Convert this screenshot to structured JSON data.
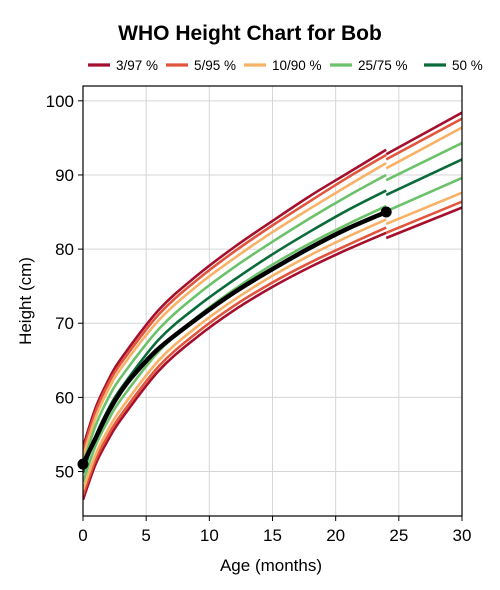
{
  "chart_data": {
    "type": "line",
    "title": "WHO Height Chart for Bob",
    "xlabel": "Age (months)",
    "ylabel": "Height (cm)",
    "xlim": [
      0,
      30
    ],
    "ylim": [
      44,
      102
    ],
    "xticks": [
      0,
      5,
      10,
      15,
      20,
      25,
      30
    ],
    "yticks": [
      50,
      60,
      70,
      80,
      90,
      100
    ],
    "grid": true,
    "legend_position": "top",
    "legend": [
      {
        "label": "3/97 %",
        "color": "#a50f2d"
      },
      {
        "label": "5/95 %",
        "color": "#e2553d"
      },
      {
        "label": "10/90 %",
        "color": "#f8b268"
      },
      {
        "label": "25/75 %",
        "color": "#6cc16b"
      },
      {
        "label": "50 %",
        "color": "#0b6b3a"
      }
    ],
    "reference_curves": {
      "note_break_at_month": 24,
      "series": [
        {
          "group": "3/97 %",
          "color": "#a50f2d",
          "segments": [
            {
              "x": [
                0,
                1,
                2,
                3,
                6,
                9,
                12,
                15,
                18,
                21,
                24
              ],
              "y": [
                46.2,
                51.0,
                54.3,
                57.0,
                63.6,
                68.1,
                71.8,
                74.9,
                77.6,
                80.0,
                82.2
              ]
            },
            {
              "x": [
                24,
                30
              ],
              "y": [
                81.5,
                85.6
              ]
            }
          ]
        },
        {
          "group": "3/97 %",
          "color": "#a50f2d",
          "segments": [
            {
              "x": [
                0,
                1,
                2,
                3,
                6,
                9,
                12,
                15,
                18,
                21,
                24
              ],
              "y": [
                53.3,
                58.6,
                62.3,
                65.2,
                71.8,
                76.4,
                80.3,
                83.8,
                87.2,
                90.3,
                93.4
              ]
            },
            {
              "x": [
                24,
                30
              ],
              "y": [
                92.8,
                98.4
              ]
            }
          ]
        },
        {
          "group": "5/95 %",
          "color": "#e2553d",
          "segments": [
            {
              "x": [
                0,
                1,
                2,
                3,
                6,
                9,
                12,
                15,
                18,
                21,
                24
              ],
              "y": [
                46.8,
                51.6,
                54.9,
                57.6,
                64.2,
                68.7,
                72.4,
                75.5,
                78.2,
                80.6,
                82.9
              ]
            },
            {
              "x": [
                24,
                30
              ],
              "y": [
                82.2,
                86.4
              ]
            }
          ]
        },
        {
          "group": "5/95 %",
          "color": "#e2553d",
          "segments": [
            {
              "x": [
                0,
                1,
                2,
                3,
                6,
                9,
                12,
                15,
                18,
                21,
                24
              ],
              "y": [
                52.8,
                58.1,
                61.8,
                64.6,
                71.2,
                75.8,
                79.7,
                83.2,
                86.5,
                89.7,
                92.7
              ]
            },
            {
              "x": [
                24,
                30
              ],
              "y": [
                92.1,
                97.6
              ]
            }
          ]
        },
        {
          "group": "10/90 %",
          "color": "#f8b268",
          "segments": [
            {
              "x": [
                0,
                1,
                2,
                3,
                6,
                9,
                12,
                15,
                18,
                21,
                24
              ],
              "y": [
                47.5,
                52.3,
                55.7,
                58.4,
                65.0,
                69.5,
                73.2,
                76.4,
                79.2,
                81.7,
                84.0
              ]
            },
            {
              "x": [
                24,
                30
              ],
              "y": [
                83.4,
                87.6
              ]
            }
          ]
        },
        {
          "group": "10/90 %",
          "color": "#f8b268",
          "segments": [
            {
              "x": [
                0,
                1,
                2,
                3,
                6,
                9,
                12,
                15,
                18,
                21,
                24
              ],
              "y": [
                52.0,
                57.3,
                61.0,
                63.9,
                70.4,
                75.0,
                78.8,
                82.3,
                85.5,
                88.6,
                91.6
              ]
            },
            {
              "x": [
                24,
                30
              ],
              "y": [
                90.9,
                96.4
              ]
            }
          ]
        },
        {
          "group": "25/75 %",
          "color": "#6cc16b",
          "segments": [
            {
              "x": [
                0,
                1,
                2,
                3,
                6,
                9,
                12,
                15,
                18,
                21,
                24
              ],
              "y": [
                48.6,
                53.5,
                56.9,
                59.7,
                66.2,
                70.8,
                74.6,
                77.9,
                80.8,
                83.4,
                85.8
              ]
            },
            {
              "x": [
                24,
                30
              ],
              "y": [
                85.1,
                89.6
              ]
            }
          ]
        },
        {
          "group": "25/75 %",
          "color": "#6cc16b",
          "segments": [
            {
              "x": [
                0,
                1,
                2,
                3,
                6,
                9,
                12,
                15,
                18,
                21,
                24
              ],
              "y": [
                51.0,
                56.2,
                59.9,
                62.7,
                69.2,
                73.8,
                77.6,
                81.0,
                84.2,
                87.2,
                90.0
              ]
            },
            {
              "x": [
                24,
                30
              ],
              "y": [
                89.3,
                94.3
              ]
            }
          ]
        },
        {
          "group": "50 %",
          "color": "#0b6b3a",
          "segments": [
            {
              "x": [
                0,
                1,
                2,
                3,
                6,
                9,
                12,
                15,
                18,
                21,
                24
              ],
              "y": [
                49.8,
                54.8,
                58.4,
                61.2,
                67.8,
                72.2,
                75.9,
                79.3,
                82.4,
                85.3,
                87.9
              ]
            },
            {
              "x": [
                24,
                30
              ],
              "y": [
                87.3,
                92.1
              ]
            }
          ]
        }
      ]
    },
    "child_series": {
      "name": "Bob",
      "color": "#000000",
      "x": [
        0,
        1,
        2,
        3,
        4,
        6,
        9,
        12,
        15,
        18,
        21,
        24
      ],
      "y": [
        51.0,
        54.5,
        58.0,
        60.8,
        63.0,
        66.6,
        70.6,
        74.2,
        77.3,
        80.2,
        82.8,
        85.0
      ],
      "marked_points": [
        {
          "x": 0,
          "y": 51.0
        },
        {
          "x": 24,
          "y": 85.0
        }
      ]
    }
  }
}
